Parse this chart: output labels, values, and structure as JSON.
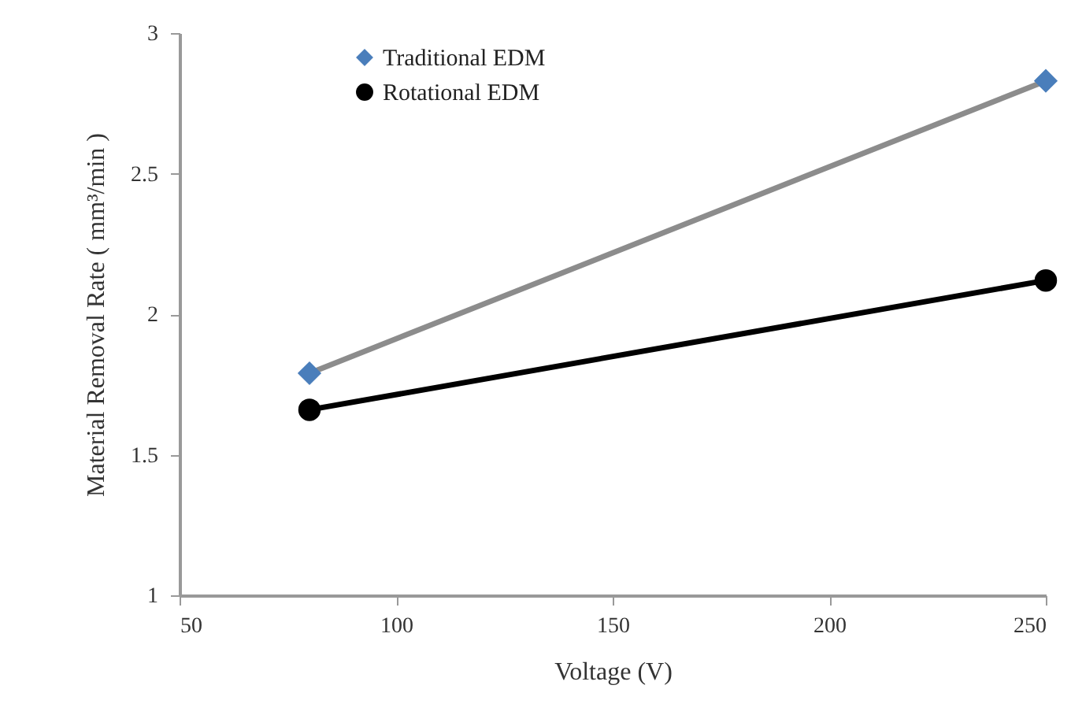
{
  "chart_data": {
    "type": "line",
    "xlabel": "Voltage (V)",
    "ylabel": "Material Removal Rate ( mm³/min )",
    "x": [
      80,
      250
    ],
    "series": [
      {
        "name": "Traditional EDM",
        "color": "#8c8c8c",
        "colors": [
          "#4a7ebb",
          "#4a7ebb"
        ],
        "marker": "diamond",
        "values": [
          1.79,
          2.83
        ]
      },
      {
        "name": "Rotational EDM",
        "color": "#000000",
        "colors": [
          "#000000",
          "#000000"
        ],
        "marker": "circle",
        "values": [
          1.66,
          2.12
        ]
      }
    ],
    "xlim": [
      50,
      250
    ],
    "xticks": [
      50,
      100,
      150,
      200,
      250
    ],
    "ylim": [
      1,
      3
    ],
    "yticks": [
      1,
      1.5,
      2,
      2.5,
      3
    ],
    "grid": false,
    "legend": "top left",
    "line_style": "solid"
  }
}
